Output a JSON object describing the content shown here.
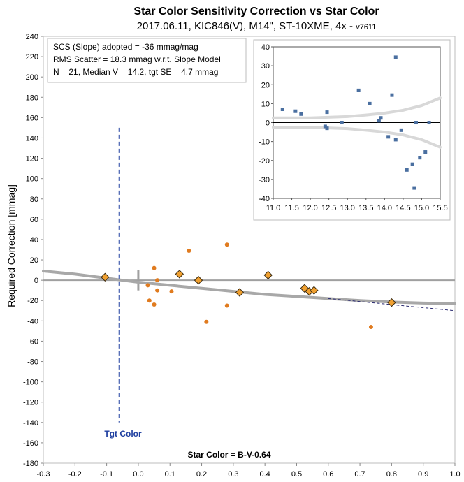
{
  "chart_data": [
    {
      "type": "scatter",
      "title": "Star Color Sensitivity Correction vs Star Color",
      "subtitle_main": "2017.06.11, KIC846(V), M14\", ST-10XME, 4x - ",
      "subtitle_version": "v7611",
      "xlabel": "Star Color = B-V-0.64",
      "ylabel": "Required Correction [mmag]",
      "xlim": [
        -0.3,
        1.0
      ],
      "ylim": [
        -180,
        240
      ],
      "x_ticks": [
        "-0.3",
        "-0.2",
        "-0.1",
        "0.0",
        "0.1",
        "0.2",
        "0.3",
        "0.4",
        "0.5",
        "0.6",
        "0.7",
        "0.8",
        "0.9",
        "1.0"
      ],
      "y_ticks": [
        "-180",
        "-160",
        "-140",
        "-120",
        "-100",
        "-80",
        "-60",
        "-40",
        "-20",
        "0",
        "20",
        "40",
        "60",
        "80",
        "100",
        "120",
        "140",
        "160",
        "180",
        "200",
        "220",
        "240"
      ],
      "annotations": [
        "SCS (Slope) adopted  =  -36 mmag/mag",
        "RMS Scatter = 18.3 mmag w.r.t. Slope Model",
        "N = 21,  Median V = 14.2, tgt SE = 4.7 mmag"
      ],
      "target_label": "Tgt Color",
      "target_color": -0.06,
      "colors": {
        "points": "#e07b1f",
        "diamonds": "#f0a030",
        "diamond_edge": "#3a2a10",
        "model": "#a8a8a8",
        "target": "#1f3fa0"
      },
      "series": [
        {
          "marker": "circle",
          "points": [
            [
              0.03,
              -5
            ],
            [
              0.035,
              -20
            ],
            [
              0.05,
              12
            ],
            [
              0.05,
              -24
            ],
            [
              0.06,
              0
            ],
            [
              0.06,
              -10
            ],
            [
              0.105,
              -11
            ],
            [
              0.16,
              29
            ],
            [
              0.215,
              -41
            ],
            [
              0.28,
              35
            ],
            [
              0.28,
              -25
            ],
            [
              0.735,
              -46
            ]
          ]
        },
        {
          "marker": "diamond",
          "points": [
            [
              -0.105,
              3
            ],
            [
              0.13,
              6
            ],
            [
              0.19,
              0
            ],
            [
              0.32,
              -12
            ],
            [
              0.41,
              5
            ],
            [
              0.525,
              -8
            ],
            [
              0.54,
              -11
            ],
            [
              0.555,
              -10
            ],
            [
              0.8,
              -22
            ]
          ]
        },
        {
          "marker": "curve",
          "points": [
            [
              -0.3,
              9
            ],
            [
              -0.2,
              6
            ],
            [
              -0.1,
              2
            ],
            [
              0.0,
              -2
            ],
            [
              0.1,
              -5
            ],
            [
              0.2,
              -8
            ],
            [
              0.3,
              -11
            ],
            [
              0.4,
              -14
            ],
            [
              0.5,
              -16
            ],
            [
              0.6,
              -18
            ],
            [
              0.7,
              -20
            ],
            [
              0.8,
              -21.5
            ],
            [
              0.9,
              -22.5
            ],
            [
              1.0,
              -23
            ]
          ]
        },
        {
          "marker": "dashed",
          "points": [
            [
              0.6,
              -18
            ],
            [
              1.0,
              -30
            ]
          ]
        }
      ]
    },
    {
      "type": "scatter",
      "xlim": [
        11.0,
        15.5
      ],
      "ylim": [
        -40,
        40
      ],
      "x_ticks": [
        "11.0",
        "11.5",
        "12.0",
        "12.5",
        "13.0",
        "13.5",
        "14.0",
        "14.5",
        "15.0",
        "15.5"
      ],
      "y_ticks": [
        "-40",
        "-30",
        "-20",
        "-10",
        "0",
        "10",
        "20",
        "30",
        "40"
      ],
      "colors": {
        "points": "#4a6fa0",
        "envelope": "#d8d8d8"
      },
      "series": [
        {
          "marker": "square",
          "points": [
            [
              11.25,
              7
            ],
            [
              11.6,
              6
            ],
            [
              11.75,
              4.5
            ],
            [
              12.4,
              -2
            ],
            [
              12.45,
              -3
            ],
            [
              12.45,
              5.5
            ],
            [
              12.85,
              0
            ],
            [
              13.3,
              17
            ],
            [
              13.6,
              10
            ],
            [
              13.85,
              1
            ],
            [
              13.9,
              2.5
            ],
            [
              14.1,
              -7.5
            ],
            [
              14.2,
              14.5
            ],
            [
              14.3,
              -9
            ],
            [
              14.3,
              34.5
            ],
            [
              14.45,
              -4
            ],
            [
              14.6,
              -25
            ],
            [
              14.75,
              -22
            ],
            [
              14.8,
              -34.5
            ],
            [
              14.95,
              -18.5
            ],
            [
              15.1,
              -15.5
            ],
            [
              15.2,
              0
            ],
            [
              14.85,
              0
            ]
          ]
        },
        {
          "marker": "envelope",
          "upper": [
            [
              11.0,
              2.5
            ],
            [
              12.0,
              2.5
            ],
            [
              13.0,
              3.2
            ],
            [
              13.5,
              4
            ],
            [
              14.0,
              5
            ],
            [
              14.5,
              6.5
            ],
            [
              15.0,
              9
            ],
            [
              15.5,
              13
            ]
          ],
          "lower": [
            [
              11.0,
              -2.5
            ],
            [
              12.0,
              -2.5
            ],
            [
              13.0,
              -3.2
            ],
            [
              13.5,
              -4
            ],
            [
              14.0,
              -5
            ],
            [
              14.5,
              -6.5
            ],
            [
              15.0,
              -9
            ],
            [
              15.5,
              -13
            ]
          ]
        }
      ]
    }
  ]
}
